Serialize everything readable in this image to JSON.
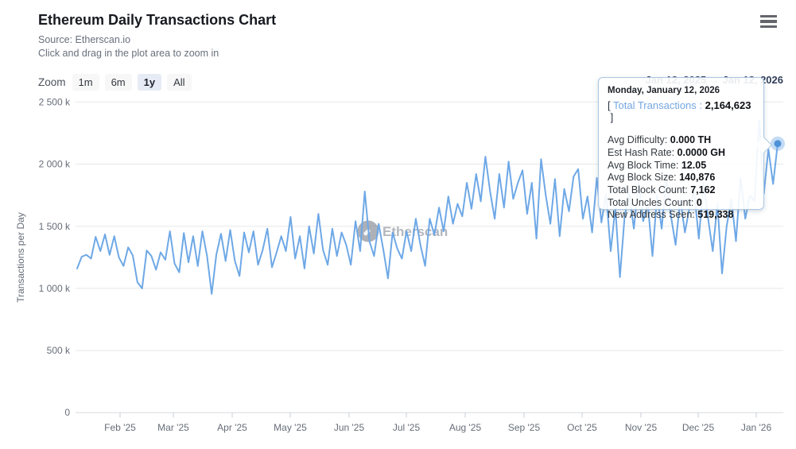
{
  "header": {
    "title": "Ethereum Daily Transactions Chart",
    "source": "Source: Etherscan.io",
    "hint": "Click and drag in the plot area to zoom in"
  },
  "zoom_bar": {
    "label": "Zoom",
    "buttons": [
      {
        "label": "1m",
        "selected": false
      },
      {
        "label": "6m",
        "selected": false
      },
      {
        "label": "1y",
        "selected": true
      },
      {
        "label": "All",
        "selected": false
      }
    ],
    "range_text": "Jan 12, 2025 → Jan 12, 2026"
  },
  "watermark": {
    "text": "Etherscan",
    "icon": "etherscan-logo-icon"
  },
  "tooltip": {
    "date": "Monday, January 12, 2026",
    "highlight": {
      "prefix": "[ ",
      "label": "Total Transactions",
      "sep": " : ",
      "value": "2,164,623",
      "suffix": " ]"
    },
    "rows": [
      {
        "label": "Avg Difficulty: ",
        "value": "0.000 TH"
      },
      {
        "label": "Est Hash Rate: ",
        "value": "0.0000 GH"
      },
      {
        "label": "Avg Block Time: ",
        "value": "12.05"
      },
      {
        "label": "Avg Block Size: ",
        "value": "140,876"
      },
      {
        "label": "Total Block Count: ",
        "value": "7,162"
      },
      {
        "label": "Total Uncles Count: ",
        "value": "0"
      },
      {
        "label": "New Address Seen: ",
        "value": "519,338"
      }
    ]
  },
  "colors": {
    "line": "#6ea8e6",
    "marker": "#4d92d8",
    "marker_halo": "#7db0e8",
    "grid": "#e8e8e8",
    "axis_text": "#666d78",
    "tooltip_border": "#abc7e2",
    "highlight_blue": "#74a6e2",
    "selected_zoom_bg": "#e6ebf5"
  },
  "chart_data": {
    "type": "line",
    "title": "Ethereum Daily Transactions Chart",
    "xlabel": "",
    "ylabel": "Transactions per Day",
    "x_range": [
      "2025-01-12",
      "2026-01-12"
    ],
    "ylim": [
      0,
      2500000
    ],
    "y_ticks": [
      "0",
      "500 k",
      "1 000 k",
      "1 500 k",
      "2 000 k",
      "2 500 k"
    ],
    "x_ticks": [
      "Feb '25",
      "Mar '25",
      "Apr '25",
      "May '25",
      "Jun '25",
      "Jul '25",
      "Aug '25",
      "Sep '25",
      "Oct '25",
      "Nov '25",
      "Dec '25",
      "Jan '26"
    ],
    "grid": "horizontal",
    "legend": "none",
    "series": [
      {
        "name": "Total Transactions",
        "color": "#6ea8e6",
        "values": [
          1160000,
          1255000,
          1270000,
          1240000,
          1415000,
          1300000,
          1435000,
          1270000,
          1420000,
          1250000,
          1180000,
          1330000,
          1265000,
          1050000,
          1000000,
          1305000,
          1260000,
          1150000,
          1290000,
          1230000,
          1460000,
          1200000,
          1130000,
          1445000,
          1210000,
          1420000,
          1180000,
          1460000,
          1260000,
          955000,
          1270000,
          1440000,
          1220000,
          1470000,
          1220000,
          1100000,
          1450000,
          1290000,
          1460000,
          1190000,
          1310000,
          1480000,
          1170000,
          1290000,
          1420000,
          1300000,
          1575000,
          1240000,
          1420000,
          1160000,
          1500000,
          1280000,
          1600000,
          1310000,
          1190000,
          1480000,
          1260000,
          1450000,
          1350000,
          1190000,
          1540000,
          1300000,
          1780000,
          1380000,
          1260000,
          1520000,
          1310000,
          1080000,
          1450000,
          1320000,
          1240000,
          1460000,
          1300000,
          1560000,
          1350000,
          1180000,
          1560000,
          1430000,
          1650000,
          1460000,
          1740000,
          1520000,
          1680000,
          1580000,
          1850000,
          1640000,
          1920000,
          1700000,
          2060000,
          1780000,
          1560000,
          1920000,
          1650000,
          2020000,
          1720000,
          1850000,
          1950000,
          1600000,
          1850000,
          1400000,
          2040000,
          1750000,
          1520000,
          1880000,
          1420000,
          1800000,
          1620000,
          1900000,
          1960000,
          1560000,
          1740000,
          1450000,
          1890000,
          1530000,
          1760000,
          1300000,
          1650000,
          1090000,
          1580000,
          1760000,
          1480000,
          1850000,
          1540000,
          1680000,
          1260000,
          1750000,
          1480000,
          1890000,
          1580000,
          1350000,
          1720000,
          1450000,
          1650000,
          1780000,
          1400000,
          1850000,
          1560000,
          1300000,
          1680000,
          1120000,
          1500000,
          1720000,
          1380000,
          1890000,
          1560000,
          1750000,
          1700000,
          2350000,
          1760000,
          2120000,
          1840000,
          2164623
        ]
      }
    ],
    "selected_point": {
      "date": "2026-01-12",
      "label": "Monday, January 12, 2026",
      "value": 2164623
    }
  }
}
